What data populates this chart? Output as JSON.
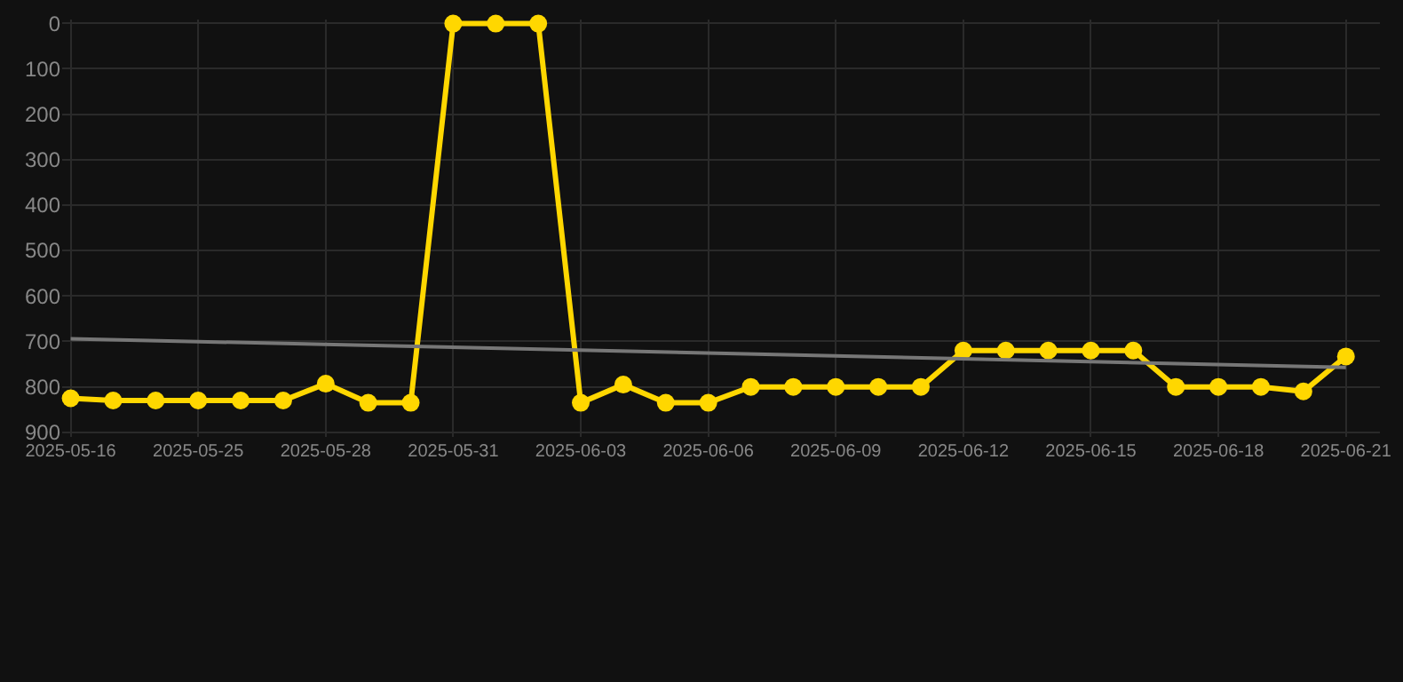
{
  "chart_data": {
    "type": "line",
    "categories": [
      "2025-05-16",
      null,
      null,
      "2025-05-25",
      null,
      null,
      "2025-05-28",
      null,
      null,
      "2025-05-31",
      null,
      null,
      "2025-06-03",
      null,
      null,
      "2025-06-06",
      null,
      null,
      "2025-06-09",
      null,
      null,
      "2025-06-12",
      null,
      null,
      "2025-06-15",
      null,
      null,
      "2025-06-18",
      null,
      null,
      "2025-06-21"
    ],
    "series": [
      {
        "color": "#ffd700",
        "values": [
          825,
          830,
          830,
          830,
          830,
          830,
          793,
          835,
          835,
          1,
          1,
          1,
          835,
          795,
          835,
          835,
          800,
          800,
          800,
          800,
          800,
          720,
          720,
          720,
          720,
          720,
          800,
          800,
          800,
          810,
          733
        ],
        "marker": "circle"
      },
      {
        "type": "line",
        "color": "#777777",
        "values": [
          694,
          null,
          null,
          null,
          null,
          null,
          null,
          null,
          null,
          null,
          null,
          null,
          null,
          null,
          null,
          null,
          null,
          null,
          null,
          null,
          null,
          null,
          null,
          null,
          null,
          null,
          null,
          null,
          null,
          null,
          757
        ],
        "marker": "none"
      }
    ],
    "ylim": [
      910,
      -8
    ],
    "yticks": [
      0,
      100,
      200,
      300,
      400,
      500,
      600,
      700,
      800,
      900
    ],
    "grid": true
  }
}
